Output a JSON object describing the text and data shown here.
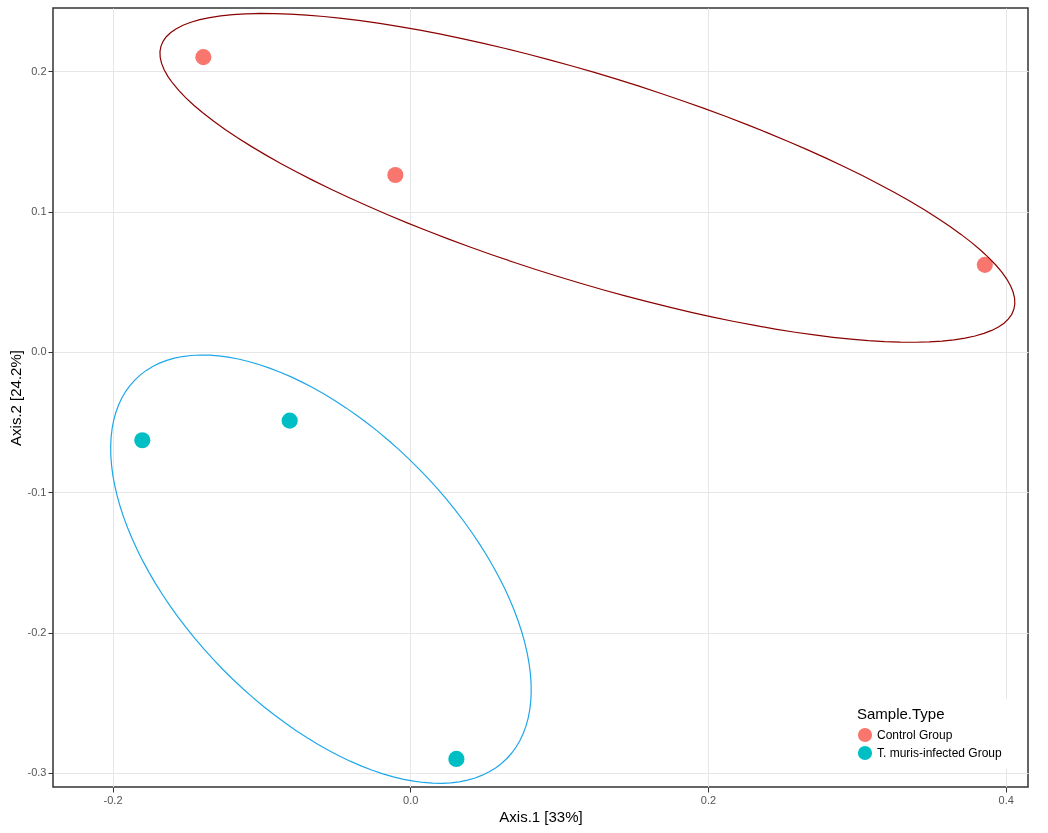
{
  "chart_data": {
    "type": "scatter",
    "xlabel": "Axis.1  [33%]",
    "ylabel": "Axis.2  [24.2%]",
    "legend_title": "Sample.Type",
    "xlim": [
      -0.24,
      0.415
    ],
    "ylim": [
      -0.31,
      0.245
    ],
    "xticks": [
      -0.2,
      {
        "value": 0,
        "label": "0.0"
      },
      0.2,
      0.4
    ],
    "yticks": [
      -0.3,
      -0.2,
      -0.1,
      {
        "value": 0,
        "label": "0.0"
      },
      0.1,
      0.2
    ],
    "grid": true,
    "legend": "bottom right",
    "marker": "circle",
    "series": [
      {
        "name": "Control Group",
        "color": "#f8766d",
        "x": [
          -0.139,
          -0.01,
          0.386
        ],
        "values": [
          0.21,
          0.126,
          0.062
        ]
      },
      {
        "name": "T. muris-infected Group",
        "color": "#00bfc4",
        "x": [
          -0.18,
          -0.081,
          0.031
        ],
        "values": [
          -0.063,
          -0.049,
          -0.29
        ]
      }
    ]
  }
}
